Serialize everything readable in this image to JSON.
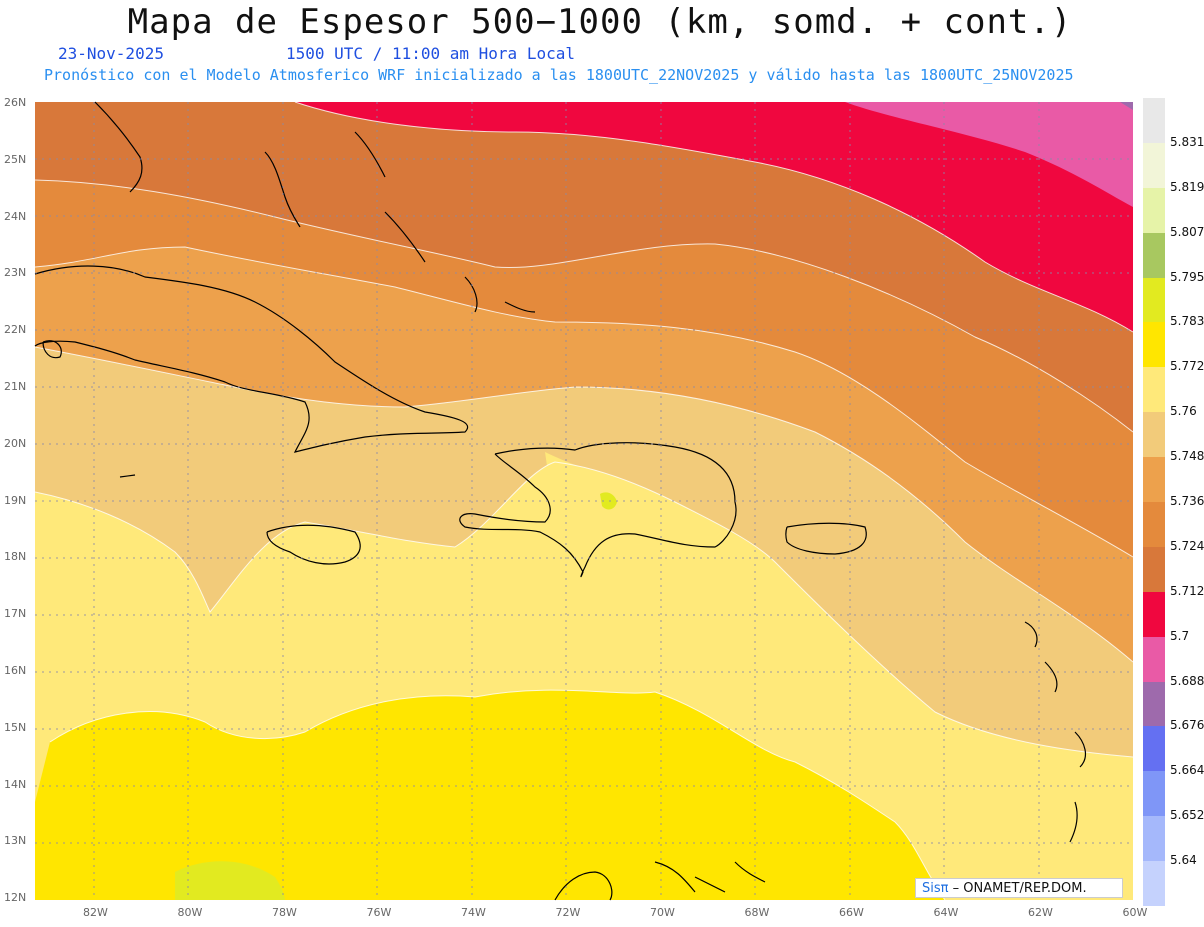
{
  "header": {
    "title": "Mapa de Espesor 500−1000 (km, somd. + cont.)",
    "date": "23-Nov-2025",
    "time": "1500 UTC / 11:00 am Hora Local",
    "forecast_info": "Pronóstico con el Modelo Atmosferico WRF inicializado a las 1800UTC_22NOV2025 y válido hasta las  1800UTC_25NOV2025"
  },
  "map": {
    "extent": {
      "lon": [
        -83.2,
        -60.0
      ],
      "lat": [
        11.9,
        26.0
      ]
    },
    "lat_labels": [
      "26N",
      "25N",
      "24N",
      "23N",
      "22N",
      "21N",
      "20N",
      "19N",
      "18N",
      "17N",
      "16N",
      "15N",
      "14N",
      "13N",
      "12N"
    ],
    "lon_labels": [
      "82W",
      "80W",
      "78W",
      "76W",
      "74W",
      "72W",
      "70W",
      "68W",
      "66W",
      "64W",
      "62W",
      "60W"
    ],
    "grid": "dotted",
    "land_outline_color": "#000000"
  },
  "legend": {
    "levels": [
      "5.831",
      "5.819",
      "5.807",
      "5.795",
      "5.783",
      "5.772",
      "5.76",
      "5.748",
      "5.736",
      "5.724",
      "5.712",
      "5.7",
      "5.688",
      "5.676",
      "5.664",
      "5.652",
      "5.64"
    ],
    "colors_top_to_bottom": [
      "#e8e8e8",
      "#f2f5d8",
      "#e6f3a8",
      "#a8c860",
      "#e2ea20",
      "#ffe600",
      "#ffe97a",
      "#f2cb7a",
      "#eda14c",
      "#e48a3c",
      "#d8783a",
      "#f0073f",
      "#e95aa6",
      "#9e6aac",
      "#6470f2",
      "#7f96f7",
      "#a5b8fb",
      "#c5d2fd"
    ]
  },
  "credit": {
    "brand": "Sisπ",
    "text": " – ONAMET/REP.DOM."
  }
}
